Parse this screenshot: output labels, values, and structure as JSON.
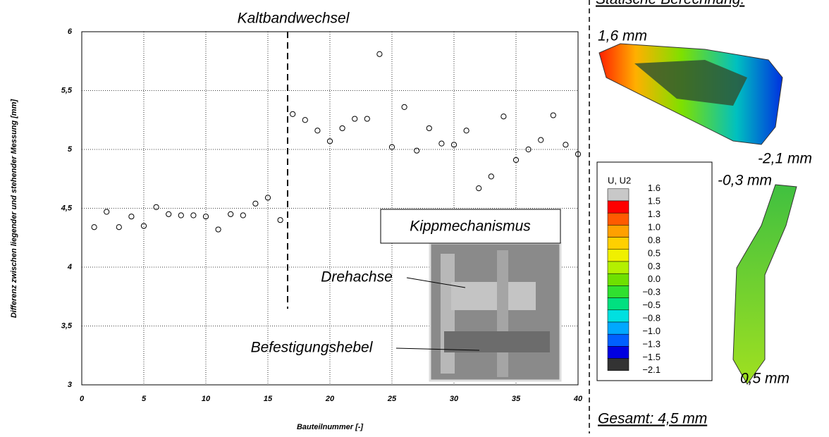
{
  "chart_data": {
    "type": "scatter",
    "x_label": "Bauteilnummer [-]",
    "y_label": "Differenz zwischen liegender und stehender Messung [mm]",
    "x": [
      1,
      2,
      3,
      4,
      5,
      6,
      7,
      8,
      9,
      10,
      11,
      12,
      13,
      14,
      15,
      16,
      17,
      18,
      19,
      20,
      21,
      22,
      23,
      24,
      25,
      26,
      27,
      28,
      29,
      30,
      31,
      32,
      33,
      34,
      35,
      36,
      37,
      38,
      39,
      40
    ],
    "values": [
      4.34,
      4.47,
      4.34,
      4.43,
      4.35,
      4.51,
      4.45,
      4.44,
      4.44,
      4.43,
      4.32,
      4.45,
      4.44,
      4.54,
      4.59,
      4.4,
      5.3,
      5.25,
      5.16,
      5.07,
      5.18,
      5.26,
      5.26,
      5.81,
      5.02,
      5.36,
      4.99,
      5.18,
      5.05,
      5.04,
      5.16,
      4.67,
      4.77,
      5.28,
      4.91,
      5.0,
      5.08,
      5.29,
      5.04,
      4.96
    ],
    "color": "#000000",
    "xlim": [
      0,
      40
    ],
    "xticks": [
      0,
      5,
      10,
      15,
      20,
      25,
      30,
      35,
      40
    ],
    "ylim": [
      3,
      6
    ],
    "yticks": [
      3,
      {
        "value": 3.5,
        "label": "3,5"
      },
      4,
      {
        "value": 4.5,
        "label": "4,5"
      },
      5,
      {
        "value": 5.5,
        "label": "5,5"
      },
      6
    ],
    "grid": true
  },
  "annotations": {
    "event": "Kaltbandwechsel",
    "inset_title": "Kippmechanismus",
    "axis_label": "Drehachse",
    "lever_label": "Befestigungshebel"
  },
  "fe_panel": {
    "title": "Statische Berechnung:",
    "top_max": "1,6 mm",
    "top_min": "-2,1 mm",
    "side_top": "-0,3 mm",
    "side_bottom": "0,5 mm",
    "total": "Gesamt: 4,5 mm",
    "legend_title": "U, U2",
    "legend_labels": [
      "1.6",
      "1.5",
      "1.3",
      "1.0",
      "0.8",
      "0.5",
      "0.3",
      "0.0",
      "−0.3",
      "−0.5",
      "−0.8",
      "−1.0",
      "−1.3",
      "−1.5",
      "−2.1"
    ],
    "legend_colors": [
      "#c8c8c8",
      "#ff0000",
      "#ff5a00",
      "#ffa000",
      "#ffd000",
      "#f0f000",
      "#b4f000",
      "#6ee000",
      "#30e030",
      "#00e080",
      "#00e0e0",
      "#00a8ff",
      "#0060ff",
      "#0000e0",
      "#333333"
    ]
  }
}
